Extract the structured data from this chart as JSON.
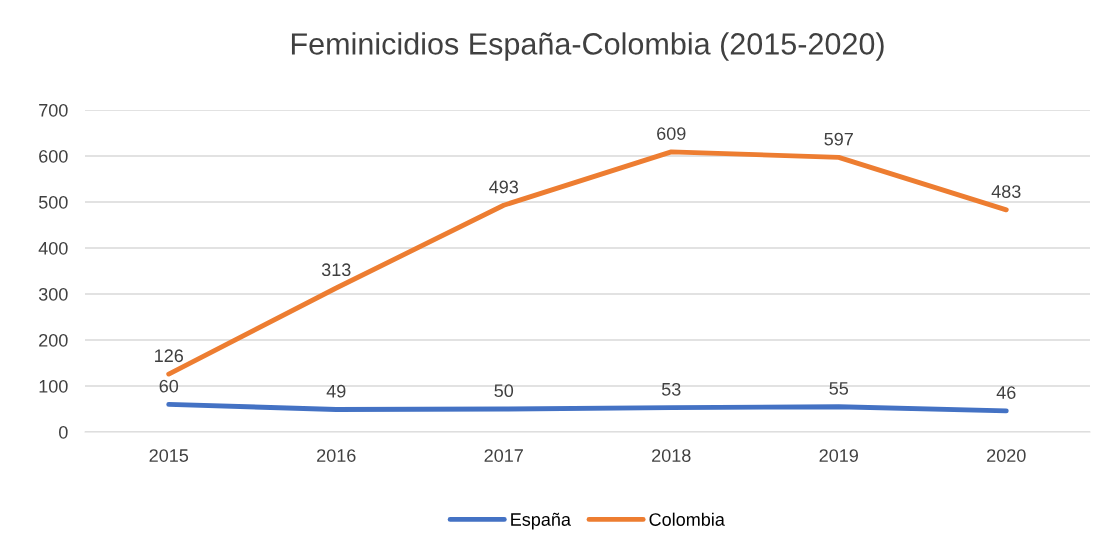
{
  "chart_data": {
    "type": "line",
    "title": "Feminicidios España-Colombia (2015-2020)",
    "categories": [
      "2015",
      "2016",
      "2017",
      "2018",
      "2019",
      "2020"
    ],
    "series": [
      {
        "name": "España",
        "color": "#4472c4",
        "values": [
          60,
          49,
          50,
          53,
          55,
          46
        ]
      },
      {
        "name": "Colombia",
        "color": "#ed7d31",
        "values": [
          126,
          313,
          493,
          609,
          597,
          483
        ]
      }
    ],
    "ylim": [
      0,
      700
    ],
    "yticks": [
      0,
      100,
      200,
      300,
      400,
      500,
      600,
      700
    ],
    "grid": "y",
    "legend": "bottom",
    "data_labels": true,
    "marker": "none",
    "line_style": "solid"
  }
}
